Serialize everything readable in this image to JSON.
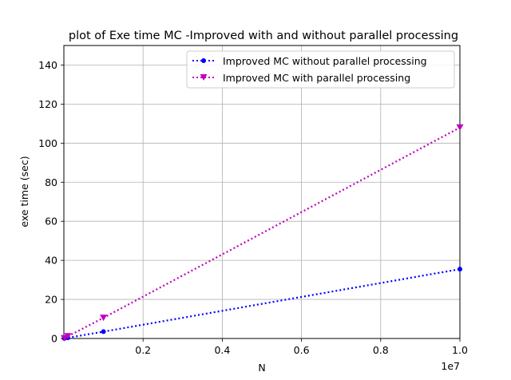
{
  "chart_data": {
    "type": "line",
    "title": "plot of  Exe time MC -Improved with and without parallel processing",
    "xlabel": "N",
    "ylabel": "exe time (sec)",
    "x_offset_label": "1e7",
    "xlim": [
      0,
      10000000
    ],
    "ylim": [
      0,
      150
    ],
    "xticks": [
      2000000,
      4000000,
      6000000,
      8000000,
      10000000
    ],
    "xtick_labels": [
      "0.2",
      "0.4",
      "0.6",
      "0.8",
      "1.0"
    ],
    "yticks": [
      0,
      20,
      40,
      60,
      80,
      100,
      120,
      140
    ],
    "ytick_labels": [
      "0",
      "20",
      "40",
      "60",
      "80",
      "100",
      "120",
      "140"
    ],
    "grid": true,
    "legend_position": "top-right",
    "series": [
      {
        "name": "Improved MC without parallel processing",
        "color": "#0000ff",
        "marker": "circle",
        "linestyle": "dotted",
        "x": [
          10000,
          100000,
          1000000,
          10000000
        ],
        "y": [
          0.04,
          0.35,
          3.5,
          35.5
        ]
      },
      {
        "name": "Improved MC with parallel processing",
        "color": "#bf00bf",
        "marker": "triangle-down",
        "linestyle": "dotted",
        "x": [
          10000,
          100000,
          1000000,
          10000000
        ],
        "y": [
          0.1,
          1.1,
          10.6,
          108
        ]
      }
    ]
  }
}
